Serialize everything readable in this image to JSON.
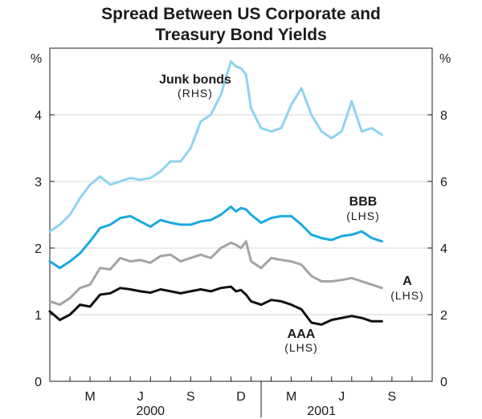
{
  "chart_data": {
    "type": "line",
    "title_lines": [
      "Spread Between US Corporate and",
      "Treasury Bond Yields"
    ],
    "left_axis": {
      "unit": "%",
      "ylim": [
        0,
        5
      ],
      "ticks": [
        "0",
        "1",
        "2",
        "3",
        "4"
      ]
    },
    "right_axis": {
      "unit": "%",
      "ylim": [
        0,
        10
      ],
      "ticks": [
        "0",
        "2",
        "4",
        "6",
        "8"
      ]
    },
    "x_axis": {
      "range_months": [
        0,
        19
      ],
      "months": [
        {
          "pos": 2,
          "label": "M"
        },
        {
          "pos": 4.5,
          "label": "J"
        },
        {
          "pos": 7,
          "label": "S"
        },
        {
          "pos": 9.5,
          "label": "D"
        },
        {
          "pos": 12,
          "label": "M"
        },
        {
          "pos": 14.5,
          "label": "J"
        },
        {
          "pos": 17,
          "label": "S"
        }
      ],
      "years": [
        {
          "pos": 5,
          "label": "2000"
        },
        {
          "pos": 13.5,
          "label": "2001"
        }
      ]
    },
    "gridlines": true,
    "series": [
      {
        "name": "Junk bonds",
        "axis_note": "(RHS)",
        "axis": "right",
        "color": "#8fd3ef",
        "x": [
          0,
          0.5,
          1,
          1.5,
          2,
          2.5,
          3,
          3.5,
          4,
          4.5,
          5,
          5.5,
          6,
          6.5,
          7,
          7.5,
          8,
          8.5,
          9,
          9.25,
          9.5,
          9.75,
          10,
          10.5,
          11,
          11.5,
          12,
          12.5,
          13,
          13.5,
          14,
          14.5,
          15,
          15.5,
          16,
          16.5
        ],
        "values": [
          4.5,
          4.7,
          5.0,
          5.5,
          5.9,
          6.15,
          5.9,
          6.0,
          6.1,
          6.05,
          6.1,
          6.3,
          6.6,
          6.6,
          7.0,
          7.8,
          8.0,
          8.6,
          9.6,
          9.45,
          9.4,
          9.2,
          8.2,
          7.6,
          7.5,
          7.6,
          8.3,
          8.8,
          8.0,
          7.5,
          7.3,
          7.5,
          8.4,
          7.5,
          7.6,
          7.4
        ]
      },
      {
        "name": "BBB",
        "axis_note": "(LHS)",
        "axis": "left",
        "color": "#1ba9e0",
        "x": [
          0,
          0.5,
          1,
          1.5,
          2,
          2.5,
          3,
          3.5,
          4,
          4.5,
          5,
          5.5,
          6,
          6.5,
          7,
          7.5,
          8,
          8.5,
          9,
          9.25,
          9.5,
          9.75,
          10,
          10.5,
          11,
          11.5,
          12,
          12.5,
          13,
          13.5,
          14,
          14.5,
          15,
          15.5,
          16,
          16.5
        ],
        "values": [
          1.8,
          1.7,
          1.8,
          1.92,
          2.1,
          2.3,
          2.35,
          2.45,
          2.48,
          2.4,
          2.32,
          2.42,
          2.38,
          2.35,
          2.35,
          2.4,
          2.42,
          2.5,
          2.62,
          2.55,
          2.6,
          2.58,
          2.5,
          2.38,
          2.45,
          2.48,
          2.48,
          2.35,
          2.2,
          2.15,
          2.12,
          2.18,
          2.2,
          2.25,
          2.15,
          2.1
        ]
      },
      {
        "name": "A",
        "axis_note": "(LHS)",
        "axis": "left",
        "color": "#a4a4a4",
        "x": [
          0,
          0.5,
          1,
          1.5,
          2,
          2.5,
          3,
          3.5,
          4,
          4.5,
          5,
          5.5,
          6,
          6.5,
          7,
          7.5,
          8,
          8.5,
          9,
          9.25,
          9.5,
          9.75,
          10,
          10.5,
          11,
          11.5,
          12,
          12.5,
          13,
          13.5,
          14,
          14.5,
          15,
          15.5,
          16,
          16.5
        ],
        "values": [
          1.2,
          1.15,
          1.25,
          1.4,
          1.45,
          1.7,
          1.68,
          1.85,
          1.8,
          1.82,
          1.78,
          1.88,
          1.9,
          1.8,
          1.85,
          1.9,
          1.85,
          2.0,
          2.08,
          2.05,
          2.0,
          2.1,
          1.8,
          1.7,
          1.85,
          1.82,
          1.8,
          1.75,
          1.58,
          1.5,
          1.5,
          1.52,
          1.55,
          1.5,
          1.45,
          1.4
        ]
      },
      {
        "name": "AAA",
        "axis_note": "(LHS)",
        "axis": "left",
        "color": "#111111",
        "x": [
          0,
          0.5,
          1,
          1.5,
          2,
          2.5,
          3,
          3.5,
          4,
          4.5,
          5,
          5.5,
          6,
          6.5,
          7,
          7.5,
          8,
          8.5,
          9,
          9.25,
          9.5,
          9.75,
          10,
          10.5,
          11,
          11.5,
          12,
          12.5,
          13,
          13.5,
          14,
          14.5,
          15,
          15.5,
          16,
          16.5
        ],
        "values": [
          1.05,
          0.92,
          1.0,
          1.15,
          1.12,
          1.3,
          1.32,
          1.4,
          1.38,
          1.35,
          1.33,
          1.38,
          1.35,
          1.32,
          1.35,
          1.38,
          1.35,
          1.4,
          1.42,
          1.35,
          1.37,
          1.3,
          1.2,
          1.15,
          1.22,
          1.2,
          1.15,
          1.08,
          0.88,
          0.85,
          0.92,
          0.95,
          0.98,
          0.95,
          0.9,
          0.9
        ]
      }
    ]
  }
}
